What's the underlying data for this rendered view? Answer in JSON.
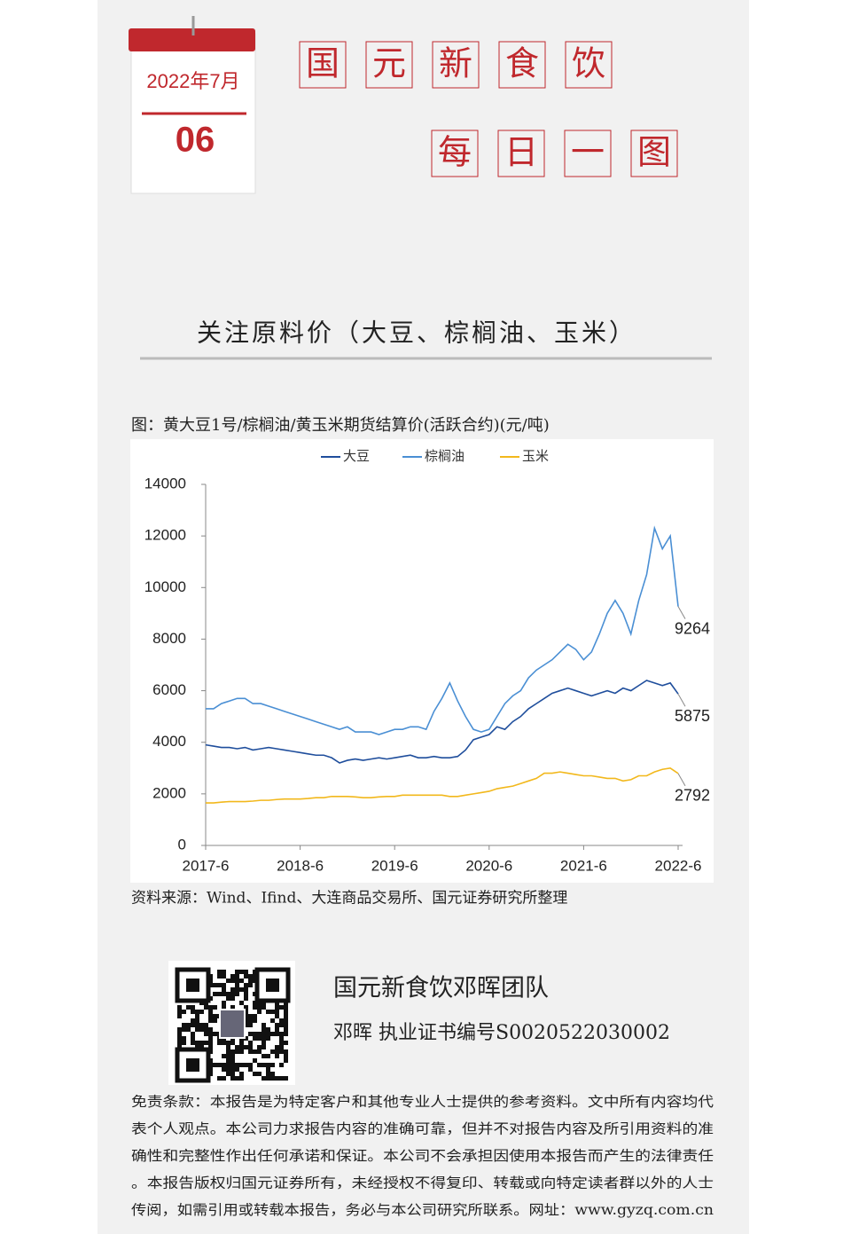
{
  "header": {
    "date": "2022年7月",
    "day": "06",
    "title_line1": [
      "国",
      "元",
      "新",
      "食",
      "饮"
    ],
    "title_line2": [
      "每",
      "日",
      "一",
      "图"
    ]
  },
  "section_title": "关注原料价（大豆、棕榈油、玉米）",
  "chart_data": {
    "type": "line",
    "title": "图：黄大豆1号/棕榈油/黄玉米期货结算价(活跃合约)(元/吨)",
    "source": "资料来源：Wind、Ifind、大连商品交易所、国元证券研究所整理",
    "x": [
      "2017-6",
      "2017-7",
      "2017-8",
      "2017-9",
      "2017-10",
      "2017-11",
      "2017-12",
      "2018-1",
      "2018-2",
      "2018-3",
      "2018-4",
      "2018-5",
      "2018-6",
      "2018-7",
      "2018-8",
      "2018-9",
      "2018-10",
      "2018-11",
      "2018-12",
      "2019-1",
      "2019-2",
      "2019-3",
      "2019-4",
      "2019-5",
      "2019-6",
      "2019-7",
      "2019-8",
      "2019-9",
      "2019-10",
      "2019-11",
      "2019-12",
      "2020-1",
      "2020-2",
      "2020-3",
      "2020-4",
      "2020-5",
      "2020-6",
      "2020-7",
      "2020-8",
      "2020-9",
      "2020-10",
      "2020-11",
      "2020-12",
      "2021-1",
      "2021-2",
      "2021-3",
      "2021-4",
      "2021-5",
      "2021-6",
      "2021-7",
      "2021-8",
      "2021-9",
      "2021-10",
      "2021-11",
      "2021-12",
      "2022-1",
      "2022-2",
      "2022-3",
      "2022-4",
      "2022-5",
      "2022-6"
    ],
    "xticks": [
      "2017-6",
      "2018-6",
      "2019-6",
      "2020-6",
      "2021-6",
      "2022-6"
    ],
    "ylim": [
      0,
      14000
    ],
    "yticks": [
      0,
      2000,
      4000,
      6000,
      8000,
      10000,
      12000,
      14000
    ],
    "grid": false,
    "series": [
      {
        "name": "大豆",
        "color": "#1f4e9c",
        "values": [
          3900,
          3850,
          3800,
          3800,
          3750,
          3800,
          3700,
          3750,
          3800,
          3750,
          3700,
          3650,
          3600,
          3550,
          3500,
          3500,
          3400,
          3200,
          3300,
          3350,
          3300,
          3350,
          3400,
          3350,
          3400,
          3450,
          3500,
          3400,
          3400,
          3450,
          3400,
          3400,
          3450,
          3700,
          4100,
          4200,
          4300,
          4600,
          4500,
          4800,
          5000,
          5300,
          5500,
          5700,
          5900,
          6000,
          6100,
          6000,
          5900,
          5800,
          5900,
          6000,
          5900,
          6100,
          6000,
          6200,
          6400,
          6300,
          6200,
          6300,
          5875
        ]
      },
      {
        "name": "棕榈油",
        "color": "#4a8fd4",
        "values": [
          5300,
          5300,
          5500,
          5600,
          5700,
          5700,
          5500,
          5500,
          5400,
          5300,
          5200,
          5100,
          5000,
          4900,
          4800,
          4700,
          4600,
          4500,
          4600,
          4400,
          4400,
          4400,
          4300,
          4400,
          4500,
          4500,
          4600,
          4600,
          4500,
          5200,
          5700,
          6300,
          5600,
          5000,
          4500,
          4400,
          4500,
          5000,
          5500,
          5800,
          6000,
          6500,
          6800,
          7000,
          7200,
          7500,
          7800,
          7600,
          7200,
          7500,
          8200,
          9000,
          9500,
          9000,
          8200,
          9500,
          10500,
          12300,
          11500,
          12000,
          9264
        ]
      },
      {
        "name": "玉米",
        "color": "#f2b81c",
        "values": [
          1650,
          1650,
          1680,
          1700,
          1700,
          1700,
          1720,
          1750,
          1750,
          1780,
          1800,
          1800,
          1800,
          1820,
          1850,
          1850,
          1900,
          1900,
          1900,
          1880,
          1850,
          1850,
          1880,
          1900,
          1900,
          1950,
          1950,
          1950,
          1950,
          1950,
          1950,
          1900,
          1900,
          1950,
          2000,
          2050,
          2100,
          2200,
          2250,
          2300,
          2400,
          2500,
          2600,
          2800,
          2800,
          2850,
          2800,
          2750,
          2700,
          2700,
          2650,
          2600,
          2600,
          2500,
          2550,
          2700,
          2700,
          2850,
          2950,
          3000,
          2792
        ]
      }
    ]
  },
  "team": {
    "name": "国元新食饮邓晖团队",
    "cert": "邓晖 执业证书编号S0020522030002"
  },
  "disclaimer": [
    "免责条款：本报告是为特定客户和其他专业人士提供的参考资料。文中所有内容均代",
    "表个人观点。本公司力求报告内容的准确可靠，但并不对报告内容及所引用资料的准",
    "确性和完整性作出任何承诺和保证。本公司不会承担因使用本报告而产生的法律责任",
    "。本报告版权归国元证券所有，未经授权不得复印、转载或向特定读者群以外的人士",
    "传阅，如需引用或转载本报告，务必与本公司研究所联系。网址：www.gyzq.com.cn"
  ]
}
